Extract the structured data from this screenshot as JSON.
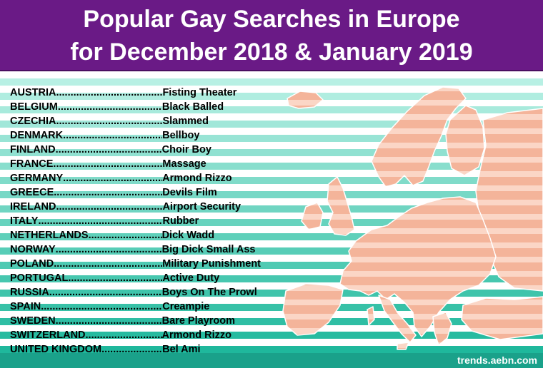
{
  "header": {
    "title_line1": "Popular Gay Searches in Europe",
    "title_line2": "for December 2018 & January 2019"
  },
  "rows": [
    {
      "country": "AUSTRIA",
      "search": "Fisting Theater"
    },
    {
      "country": "BELGIUM",
      "search": "Black Balled"
    },
    {
      "country": "CZECHIA",
      "search": "Slammed"
    },
    {
      "country": "DENMARK",
      "search": "Bellboy"
    },
    {
      "country": "FINLAND",
      "search": "Choir Boy"
    },
    {
      "country": "FRANCE",
      "search": "Massage"
    },
    {
      "country": "GERMANY",
      "search": "Armond Rizzo"
    },
    {
      "country": "GREECE",
      "search": "Devils Film"
    },
    {
      "country": "IRELAND",
      "search": "Airport Security"
    },
    {
      "country": "ITALY",
      "search": "Rubber"
    },
    {
      "country": "NETHERLANDS",
      "search": "Dick Wadd"
    },
    {
      "country": "NORWAY",
      "search": "Big Dick Small Ass"
    },
    {
      "country": "POLAND",
      "search": "Military Punishment"
    },
    {
      "country": "PORTUGAL",
      "search": "Active Duty"
    },
    {
      "country": "RUSSIA",
      "search": "Boys On The Prowl"
    },
    {
      "country": "SPAIN",
      "search": "Creampie"
    },
    {
      "country": "SWEDEN",
      "search": "Bare Playroom"
    },
    {
      "country": "SWITZERLAND",
      "search": "Armond Rizzo"
    },
    {
      "country": "UNITED KINGDOM",
      "search": "Bel Ami"
    }
  ],
  "footer": {
    "credit": "trends.aebn.com"
  },
  "colors": {
    "header_bg": "#6a1a86",
    "stripe_light": "#ffffff",
    "stripe_teal_start": "#b8f0e4",
    "stripe_teal_end": "#1fb89c",
    "map_land": "#f4b49a",
    "footer_bg": "#1aa18a"
  }
}
